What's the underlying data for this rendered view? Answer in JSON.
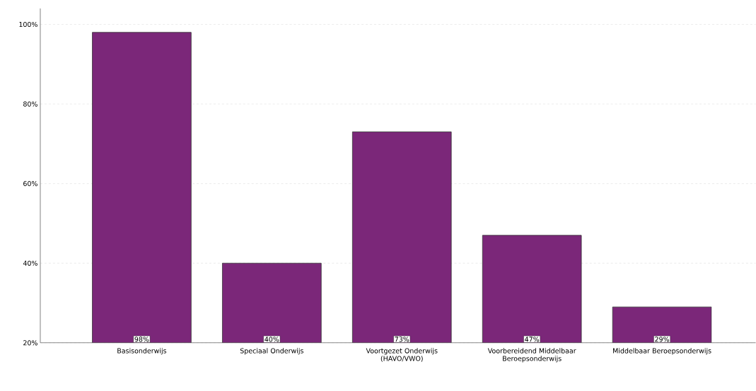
{
  "chart_data": {
    "type": "bar",
    "categories": [
      "Basisonderwijs",
      "Speciaal Onderwijs",
      "Voortgezet Onderwijs (HAVO/VWO)",
      "Voorbereidend Middelbaar Beroepsonderwijs",
      "Middelbaar Beroepsonderwijs"
    ],
    "values": [
      98,
      40,
      73,
      47,
      29
    ],
    "value_labels": [
      "98%",
      "40%",
      "73%",
      "47%",
      "29%"
    ],
    "color": "#7b2779",
    "ylim": [
      20,
      104
    ],
    "yticks": [
      {
        "value": 20,
        "label": "20%"
      },
      {
        "value": 40,
        "label": "40%"
      },
      {
        "value": 60,
        "label": "60%"
      },
      {
        "value": 80,
        "label": "80%"
      },
      {
        "value": 100,
        "label": "100%"
      }
    ],
    "grid": "y"
  }
}
